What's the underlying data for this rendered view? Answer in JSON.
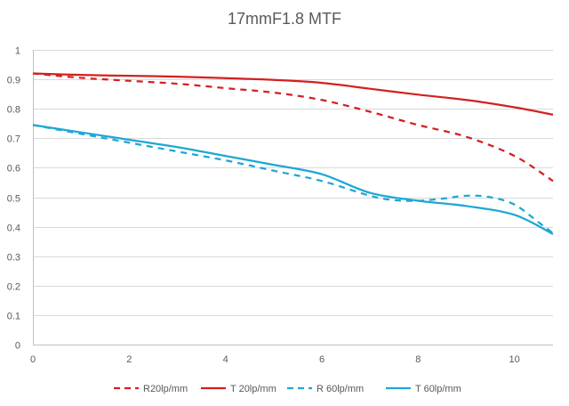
{
  "chart_data": {
    "type": "line",
    "title": "17mmF1.8  MTF",
    "xlabel": "",
    "ylabel": "",
    "xlim": [
      0,
      10.8
    ],
    "ylim": [
      0,
      1
    ],
    "x_ticks": [
      0,
      2,
      4,
      6,
      8,
      10
    ],
    "y_ticks": [
      0,
      0.1,
      0.2,
      0.3,
      0.4,
      0.5,
      0.6,
      0.7,
      0.8,
      0.9,
      1
    ],
    "x_tick_labels": [
      "0",
      "2",
      "4",
      "6",
      "8",
      "10"
    ],
    "y_tick_labels": [
      "0",
      "0.1",
      "0.2",
      "0.3",
      "0.4",
      "0.5",
      "0.6",
      "0.7",
      "0.8",
      "0.9",
      "1"
    ],
    "grid": "horizontal",
    "legend_position": "bottom",
    "series": [
      {
        "name": "R20lp/mm",
        "color": "#d42020",
        "dash": "dashed",
        "x": [
          0,
          1,
          2,
          3,
          4,
          5,
          6,
          7,
          8,
          9,
          10,
          10.8
        ],
        "y": [
          0.92,
          0.905,
          0.895,
          0.885,
          0.87,
          0.855,
          0.83,
          0.79,
          0.745,
          0.705,
          0.64,
          0.555
        ]
      },
      {
        "name": "T 20lp/mm",
        "color": "#d42020",
        "dash": "solid",
        "x": [
          0,
          1,
          2,
          3,
          4,
          5,
          6,
          7,
          8,
          9,
          10,
          10.8
        ],
        "y": [
          0.92,
          0.915,
          0.912,
          0.909,
          0.904,
          0.898,
          0.888,
          0.868,
          0.848,
          0.83,
          0.805,
          0.78
        ]
      },
      {
        "name": "R 60lp/mm",
        "color": "#1ea7d4",
        "dash": "dashed",
        "x": [
          0,
          1,
          2,
          3,
          4,
          5,
          6,
          7,
          7.5,
          8,
          8.5,
          9,
          9.5,
          10,
          10.5,
          10.8
        ],
        "y": [
          0.745,
          0.715,
          0.685,
          0.655,
          0.625,
          0.59,
          0.555,
          0.505,
          0.49,
          0.488,
          0.495,
          0.505,
          0.5,
          0.475,
          0.415,
          0.378
        ]
      },
      {
        "name": "T 60lp/mm",
        "color": "#1ea7d4",
        "dash": "solid",
        "x": [
          0,
          1,
          2,
          3,
          4,
          5,
          6,
          7,
          8,
          9,
          10,
          10.8
        ],
        "y": [
          0.745,
          0.72,
          0.695,
          0.67,
          0.64,
          0.61,
          0.578,
          0.515,
          0.488,
          0.47,
          0.44,
          0.375
        ]
      }
    ]
  }
}
